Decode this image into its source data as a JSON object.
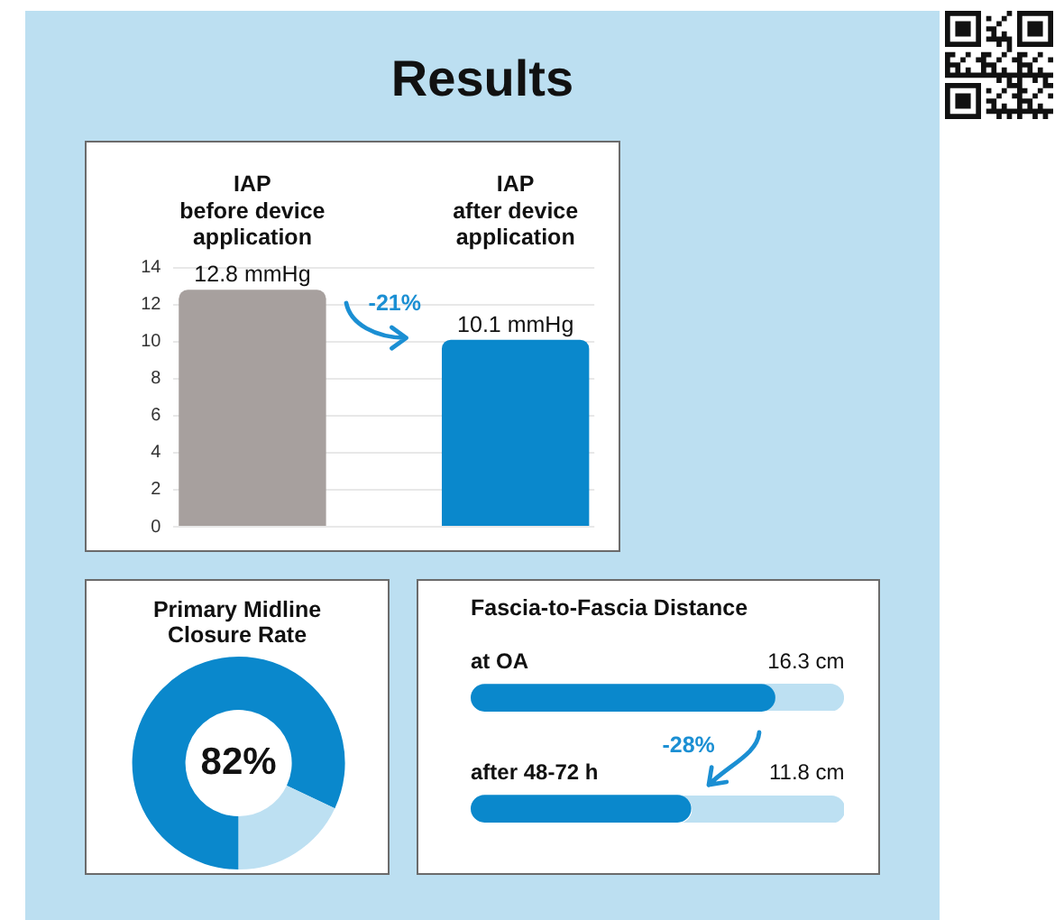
{
  "chart_data": [
    {
      "type": "bar",
      "title": "Results",
      "categories": [
        "IAP\nbefore device\napplication",
        "IAP\nafter device\napplication"
      ],
      "values": [
        12.8,
        10.1
      ],
      "colors": [
        "#a7a09e",
        "#0a88cc"
      ],
      "ylim": [
        0,
        14
      ],
      "yticks": [
        0,
        2,
        4,
        6,
        8,
        10,
        12,
        14
      ],
      "grid": "y",
      "value_labels": [
        "12.8 mmHg",
        "10.1 mmHg"
      ],
      "annotations": [
        "-21%"
      ]
    },
    {
      "type": "donut",
      "title": "Primary Midline Closure Rate",
      "categories": [
        null,
        null
      ],
      "values": [
        82,
        18
      ],
      "colors": [
        "#0a88cc",
        "#bde0f2"
      ],
      "value_labels": [
        "82%",
        null
      ]
    },
    {
      "type": "bar",
      "orientation": "horizontal",
      "title": "Fascia-to-Fascia Distance",
      "categories": [
        "at OA",
        "after 48-72 h"
      ],
      "values": [
        16.3,
        11.8
      ],
      "color": "#0a88cc",
      "xlim": [
        0,
        20
      ],
      "value_labels": [
        "16.3 cm",
        "11.8 cm"
      ],
      "annotations": [
        "-28%"
      ],
      "tick_labels": "y"
    }
  ]
}
